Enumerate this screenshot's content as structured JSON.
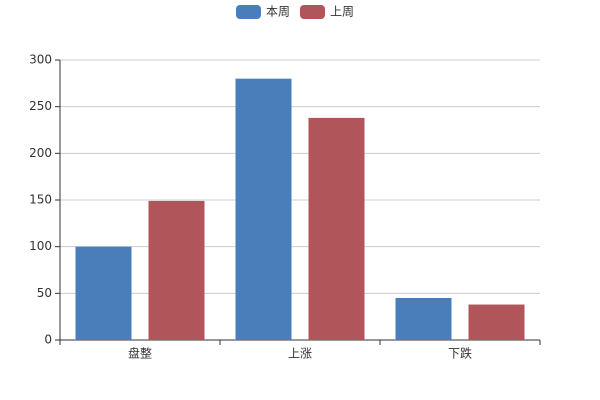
{
  "chart_data": {
    "type": "bar",
    "categories": [
      "盘整",
      "上涨",
      "下跌"
    ],
    "series": [
      {
        "name": "本周",
        "color": "#4a7ebb",
        "values": [
          100,
          280,
          45
        ]
      },
      {
        "name": "上周",
        "color": "#b0555a",
        "values": [
          149,
          238,
          38
        ]
      }
    ],
    "ylim": [
      0,
      300
    ],
    "yticks": [
      0,
      50,
      100,
      150,
      200,
      250,
      300
    ],
    "grid": true,
    "legend": "top"
  }
}
